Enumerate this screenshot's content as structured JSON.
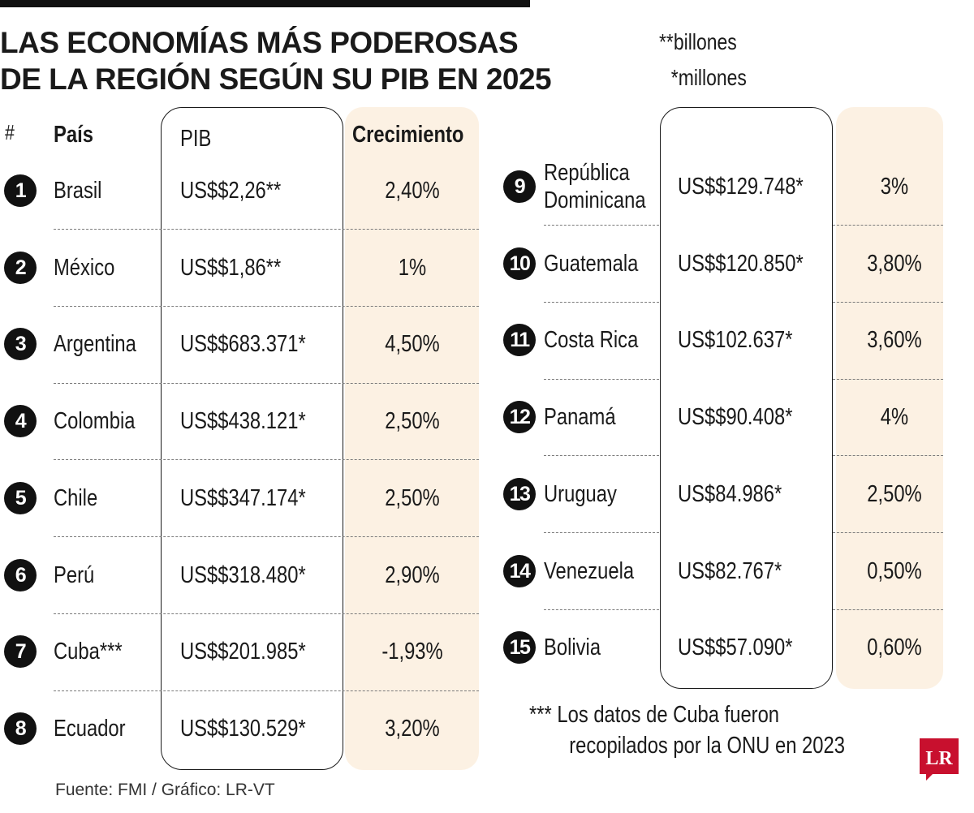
{
  "title": {
    "line1": "LAS ECONOMÍAS MÁS PODEROSAS",
    "line2": "DE LA REGIÓN SEGÚN SU PIB EN 2025"
  },
  "units": {
    "billones": "**billones",
    "millones": "*millones"
  },
  "headers": {
    "rank": "#",
    "country": "País",
    "gdp": "PIB",
    "growth": "Crecimiento"
  },
  "note": {
    "line1": "*** Los datos de Cuba fueron",
    "line2": "recopilados por la ONU en 2023"
  },
  "source": "Fuente: FMI / Gráfico: LR-VT",
  "logo_text": "LR",
  "colors": {
    "accent_red": "#c8102e",
    "growth_column_bg": "#fcf1e3",
    "ink": "#1a1a1a"
  },
  "chart_data": {
    "type": "table",
    "title": "LAS ECONOMÍAS MÁS PODEROSAS DE LA REGIÓN SEGÚN SU PIB EN 2025",
    "columns": [
      "#",
      "País",
      "PIB",
      "Crecimiento"
    ],
    "rows": [
      {
        "rank": "1",
        "country": "Brasil",
        "gdp": "US$$2,26**",
        "growth": "2,40%"
      },
      {
        "rank": "2",
        "country": "México",
        "gdp": "US$$1,86**",
        "growth": "1%"
      },
      {
        "rank": "3",
        "country": "Argentina",
        "gdp": "US$$683.371*",
        "growth": "4,50%"
      },
      {
        "rank": "4",
        "country": "Colombia",
        "gdp": "US$$438.121*",
        "growth": "2,50%"
      },
      {
        "rank": "5",
        "country": "Chile",
        "gdp": "US$$347.174*",
        "growth": "2,50%"
      },
      {
        "rank": "6",
        "country": "Perú",
        "gdp": "US$$318.480*",
        "growth": "2,90%"
      },
      {
        "rank": "7",
        "country": "Cuba***",
        "gdp": "US$$201.985*",
        "growth": "-1,93%"
      },
      {
        "rank": "8",
        "country": "Ecuador",
        "gdp": "US$$130.529*",
        "growth": "3,20%"
      },
      {
        "rank": "9",
        "country": "República Dominicana",
        "country_lines": [
          "República",
          "Dominicana"
        ],
        "gdp": "US$$129.748*",
        "growth": "3%"
      },
      {
        "rank": "10",
        "country": "Guatemala",
        "gdp": "US$$120.850*",
        "growth": "3,80%"
      },
      {
        "rank": "11",
        "country": "Costa Rica",
        "gdp": "US$102.637*",
        "growth": "3,60%"
      },
      {
        "rank": "12",
        "country": "Panamá",
        "gdp": "US$$90.408*",
        "growth": "4%"
      },
      {
        "rank": "13",
        "country": "Uruguay",
        "gdp": "US$84.986*",
        "growth": "2,50%"
      },
      {
        "rank": "14",
        "country": "Venezuela",
        "gdp": "US$82.767*",
        "growth": "0,50%"
      },
      {
        "rank": "15",
        "country": "Bolivia",
        "gdp": "US$$57.090*",
        "growth": "0,60%"
      }
    ]
  }
}
